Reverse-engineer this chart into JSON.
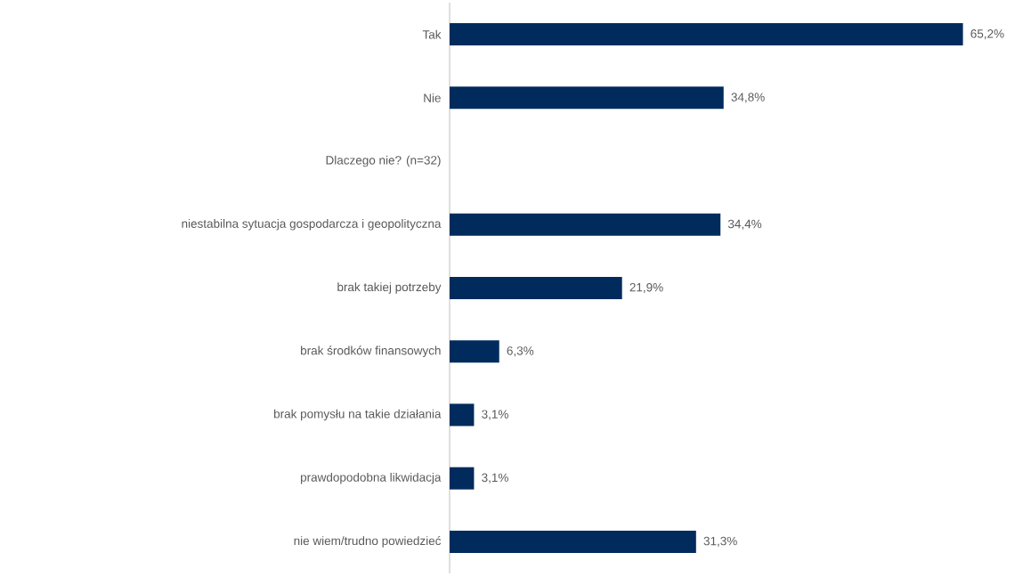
{
  "chart_data": {
    "type": "bar",
    "orientation": "horizontal",
    "color": "#002b5c",
    "categories": [
      "Tak",
      "Nie",
      "Dlaczego nie? (n=32)",
      "niestabilna sytuacja gospodarcza i geopolityczna",
      "brak takiej potrzeby",
      "brak środków finansowych",
      "brak pomysłu na takie działania",
      "prawdopodobna likwidacja",
      "nie wiem/trudno powiedzieć"
    ],
    "values": [
      65.2,
      34.8,
      null,
      34.4,
      21.9,
      6.3,
      3.1,
      3.1,
      31.3
    ],
    "value_labels": [
      "65,2%",
      "34,8%",
      null,
      "34,4%",
      "21,9%",
      "6,3%",
      "3,1%",
      "3,1%",
      "31,3%"
    ]
  }
}
